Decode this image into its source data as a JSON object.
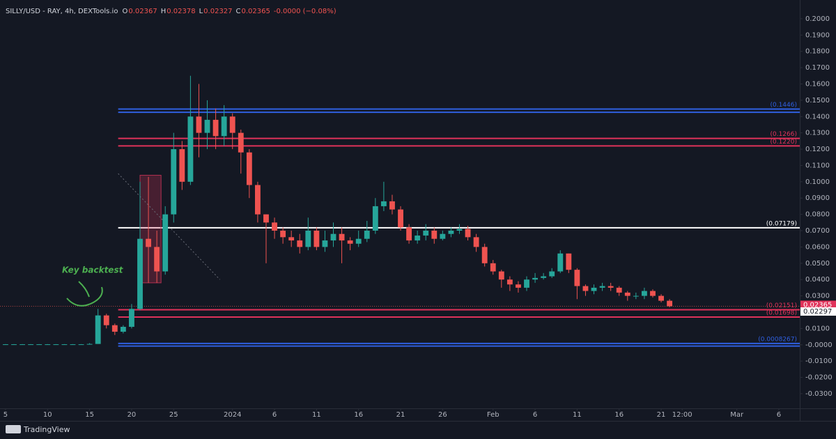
{
  "header": {
    "symbol": "SILLY/USD - RAY, 4h, DEXTools.io",
    "o_label": "O",
    "open": "0.02367",
    "h_label": "H",
    "high": "0.02378",
    "l_label": "L",
    "low": "0.02327",
    "c_label": "C",
    "close": "0.02365",
    "change": "-0.0000 (−0.08%)"
  },
  "footer": {
    "brand": "TradingView"
  },
  "chart_data": {
    "type": "candlestick",
    "annotation": "Key backtest",
    "x": [
      0,
      1,
      2,
      3,
      4,
      5,
      6,
      7,
      8,
      9,
      10,
      11,
      12,
      13,
      14,
      15,
      16,
      17,
      18,
      19,
      20,
      21,
      22,
      23,
      24,
      25,
      26,
      27,
      28,
      29,
      30,
      31,
      32,
      33,
      34,
      35,
      36,
      37,
      38,
      39,
      40,
      41,
      42,
      43,
      44,
      45,
      46,
      47,
      48,
      49,
      50,
      51,
      52,
      53,
      54,
      55,
      56,
      57,
      58,
      59,
      60,
      61,
      62,
      63,
      64,
      65,
      66,
      67,
      68,
      69,
      70,
      71,
      72,
      73,
      74,
      75,
      76,
      77,
      78,
      79
    ],
    "open": [
      0.0003,
      0.0003,
      0.0003,
      0.0003,
      0.0003,
      0.0003,
      0.0003,
      0.0003,
      0.0003,
      0.0003,
      0.0003,
      0.0005,
      0.018,
      0.012,
      0.008,
      0.011,
      0.022,
      0.065,
      0.06,
      0.045,
      0.08,
      0.12,
      0.1,
      0.14,
      0.13,
      0.138,
      0.128,
      0.14,
      0.13,
      0.118,
      0.098,
      0.08,
      0.075,
      0.07,
      0.066,
      0.064,
      0.06,
      0.07,
      0.06,
      0.064,
      0.068,
      0.064,
      0.062,
      0.065,
      0.07,
      0.085,
      0.088,
      0.083,
      0.072,
      0.064,
      0.067,
      0.07,
      0.065,
      0.068,
      0.07,
      0.071,
      0.066,
      0.06,
      0.05,
      0.045,
      0.04,
      0.037,
      0.035,
      0.04,
      0.041,
      0.042,
      0.045,
      0.056,
      0.046,
      0.036,
      0.033,
      0.035,
      0.036,
      0.035,
      0.032,
      0.03,
      0.03,
      0.033,
      0.03,
      0.027
    ],
    "high": [
      0.0004,
      0.0004,
      0.0004,
      0.0004,
      0.0004,
      0.0004,
      0.0004,
      0.0004,
      0.0004,
      0.0004,
      0.001,
      0.022,
      0.019,
      0.013,
      0.012,
      0.025,
      0.1,
      0.103,
      0.07,
      0.085,
      0.13,
      0.125,
      0.165,
      0.16,
      0.15,
      0.145,
      0.147,
      0.142,
      0.132,
      0.12,
      0.1,
      0.08,
      0.078,
      0.072,
      0.07,
      0.068,
      0.078,
      0.072,
      0.07,
      0.075,
      0.072,
      0.066,
      0.07,
      0.076,
      0.09,
      0.1,
      0.092,
      0.085,
      0.074,
      0.07,
      0.074,
      0.072,
      0.07,
      0.072,
      0.074,
      0.073,
      0.068,
      0.062,
      0.052,
      0.046,
      0.042,
      0.039,
      0.042,
      0.044,
      0.044,
      0.047,
      0.058,
      0.056,
      0.047,
      0.037,
      0.037,
      0.038,
      0.038,
      0.036,
      0.033,
      0.032,
      0.035,
      0.034,
      0.031,
      0.028
    ],
    "low": [
      0.0002,
      0.0002,
      0.0002,
      0.0002,
      0.0002,
      0.0002,
      0.0002,
      0.0002,
      0.0002,
      0.0002,
      0.0003,
      0.0005,
      0.01,
      0.006,
      0.007,
      0.01,
      0.021,
      0.038,
      0.038,
      0.043,
      0.075,
      0.095,
      0.098,
      0.115,
      0.12,
      0.12,
      0.122,
      0.12,
      0.105,
      0.09,
      0.075,
      0.05,
      0.065,
      0.062,
      0.06,
      0.056,
      0.058,
      0.058,
      0.057,
      0.06,
      0.05,
      0.058,
      0.06,
      0.063,
      0.068,
      0.082,
      0.08,
      0.07,
      0.062,
      0.062,
      0.064,
      0.062,
      0.064,
      0.066,
      0.068,
      0.064,
      0.057,
      0.048,
      0.043,
      0.035,
      0.033,
      0.032,
      0.033,
      0.038,
      0.04,
      0.041,
      0.044,
      0.044,
      0.028,
      0.03,
      0.031,
      0.033,
      0.033,
      0.03,
      0.027,
      0.028,
      0.028,
      0.029,
      0.026,
      0.023
    ],
    "close": [
      0.0003,
      0.0003,
      0.0003,
      0.0003,
      0.0003,
      0.0003,
      0.0003,
      0.0003,
      0.0003,
      0.0003,
      0.0005,
      0.018,
      0.012,
      0.008,
      0.011,
      0.022,
      0.065,
      0.06,
      0.045,
      0.08,
      0.12,
      0.1,
      0.14,
      0.13,
      0.138,
      0.128,
      0.14,
      0.13,
      0.118,
      0.098,
      0.08,
      0.075,
      0.07,
      0.066,
      0.064,
      0.06,
      0.07,
      0.06,
      0.064,
      0.068,
      0.064,
      0.062,
      0.065,
      0.07,
      0.085,
      0.088,
      0.083,
      0.072,
      0.064,
      0.067,
      0.07,
      0.065,
      0.068,
      0.07,
      0.071,
      0.066,
      0.06,
      0.05,
      0.045,
      0.04,
      0.037,
      0.035,
      0.04,
      0.041,
      0.042,
      0.045,
      0.056,
      0.046,
      0.036,
      0.033,
      0.035,
      0.036,
      0.035,
      0.032,
      0.03,
      0.03,
      0.033,
      0.03,
      0.027,
      0.02365
    ],
    "up_color": "#26a69a",
    "down_color": "#ef5350",
    "levels": [
      {
        "value": 0.1446,
        "label": "(0.1446)",
        "color": "#2f5fe0",
        "from": 13.4
      },
      {
        "value": 0.1426,
        "color": "#2f5fe0",
        "from": 13.4
      },
      {
        "value": 0.1266,
        "label": "(0.1266)",
        "color": "#e0325a",
        "from": 13.4
      },
      {
        "value": 0.122,
        "label": "(0.1220)",
        "color": "#e0325a",
        "from": 13.4
      },
      {
        "value": 0.07179,
        "label": "(0.07179)",
        "color": "#ffffff",
        "from": 13.4
      },
      {
        "value": 0.02151,
        "label": "(0.02151)",
        "color": "#e0325a",
        "from": 13.4
      },
      {
        "value": 0.01698,
        "label": "(0.01698)",
        "color": "#e0325a",
        "from": 13.4
      },
      {
        "value": 0.0008267,
        "label": "(0.0008267)",
        "color": "#2f5fe0",
        "from": 13.4
      },
      {
        "value": -0.0008,
        "color": "#2f5fe0",
        "from": 13.4
      }
    ],
    "box": {
      "x": [
        16,
        18.5
      ],
      "y": [
        0.038,
        0.104
      ]
    },
    "trendline": {
      "x": [
        13.4,
        25.5
      ],
      "y": [
        0.105,
        0.04
      ]
    },
    "price_badges": [
      {
        "value": 0.02365,
        "label": "0.02365",
        "color": "#e0325a"
      },
      {
        "value": 0.02297,
        "label": "0.02297",
        "color": "#ffffff"
      }
    ],
    "xlim": [
      -0.66,
      94.49
    ],
    "xticks": [
      {
        "value": 0,
        "label": "5"
      },
      {
        "value": 5,
        "label": "10"
      },
      {
        "value": 10,
        "label": "15"
      },
      {
        "value": 15,
        "label": "20"
      },
      {
        "value": 20,
        "label": "25"
      },
      {
        "value": 27,
        "label": "2024"
      },
      {
        "value": 32,
        "label": "6"
      },
      {
        "value": 37,
        "label": "11"
      },
      {
        "value": 42,
        "label": "16"
      },
      {
        "value": 47,
        "label": "21"
      },
      {
        "value": 52,
        "label": "26"
      },
      {
        "value": 58,
        "label": "Feb"
      },
      {
        "value": 63,
        "label": "6"
      },
      {
        "value": 68,
        "label": "11"
      },
      {
        "value": 73,
        "label": "16"
      },
      {
        "value": 78,
        "label": "21"
      },
      {
        "value": 80.5,
        "label": "12:00"
      },
      {
        "value": 87,
        "label": "Mar"
      },
      {
        "value": 92,
        "label": "6"
      }
    ],
    "ylim": [
      -0.039,
      0.2115
    ],
    "yticks": [
      {
        "value": 0.2,
        "label": "0.2000"
      },
      {
        "value": 0.19,
        "label": "0.1900"
      },
      {
        "value": 0.18,
        "label": "0.1800"
      },
      {
        "value": 0.17,
        "label": "0.1700"
      },
      {
        "value": 0.16,
        "label": "0.1600"
      },
      {
        "value": 0.15,
        "label": "0.1500"
      },
      {
        "value": 0.14,
        "label": "0.1400"
      },
      {
        "value": 0.13,
        "label": "0.1300"
      },
      {
        "value": 0.12,
        "label": "0.1200"
      },
      {
        "value": 0.11,
        "label": "0.1100"
      },
      {
        "value": 0.1,
        "label": "0.1000"
      },
      {
        "value": 0.09,
        "label": "0.0900"
      },
      {
        "value": 0.08,
        "label": "0.0800"
      },
      {
        "value": 0.07,
        "label": "0.0700"
      },
      {
        "value": 0.06,
        "label": "0.0600"
      },
      {
        "value": 0.05,
        "label": "0.0500"
      },
      {
        "value": 0.04,
        "label": "0.0400"
      },
      {
        "value": 0.03,
        "label": "0.0300"
      },
      {
        "value": 0.02,
        "label": "0.0200"
      },
      {
        "value": 0.01,
        "label": "0.0100"
      },
      {
        "value": 0,
        "label": "-0.0000"
      },
      {
        "value": -0.01,
        "label": "-0.0100"
      },
      {
        "value": -0.02,
        "label": "-0.0200"
      },
      {
        "value": -0.03,
        "label": "-0.0300"
      }
    ]
  }
}
